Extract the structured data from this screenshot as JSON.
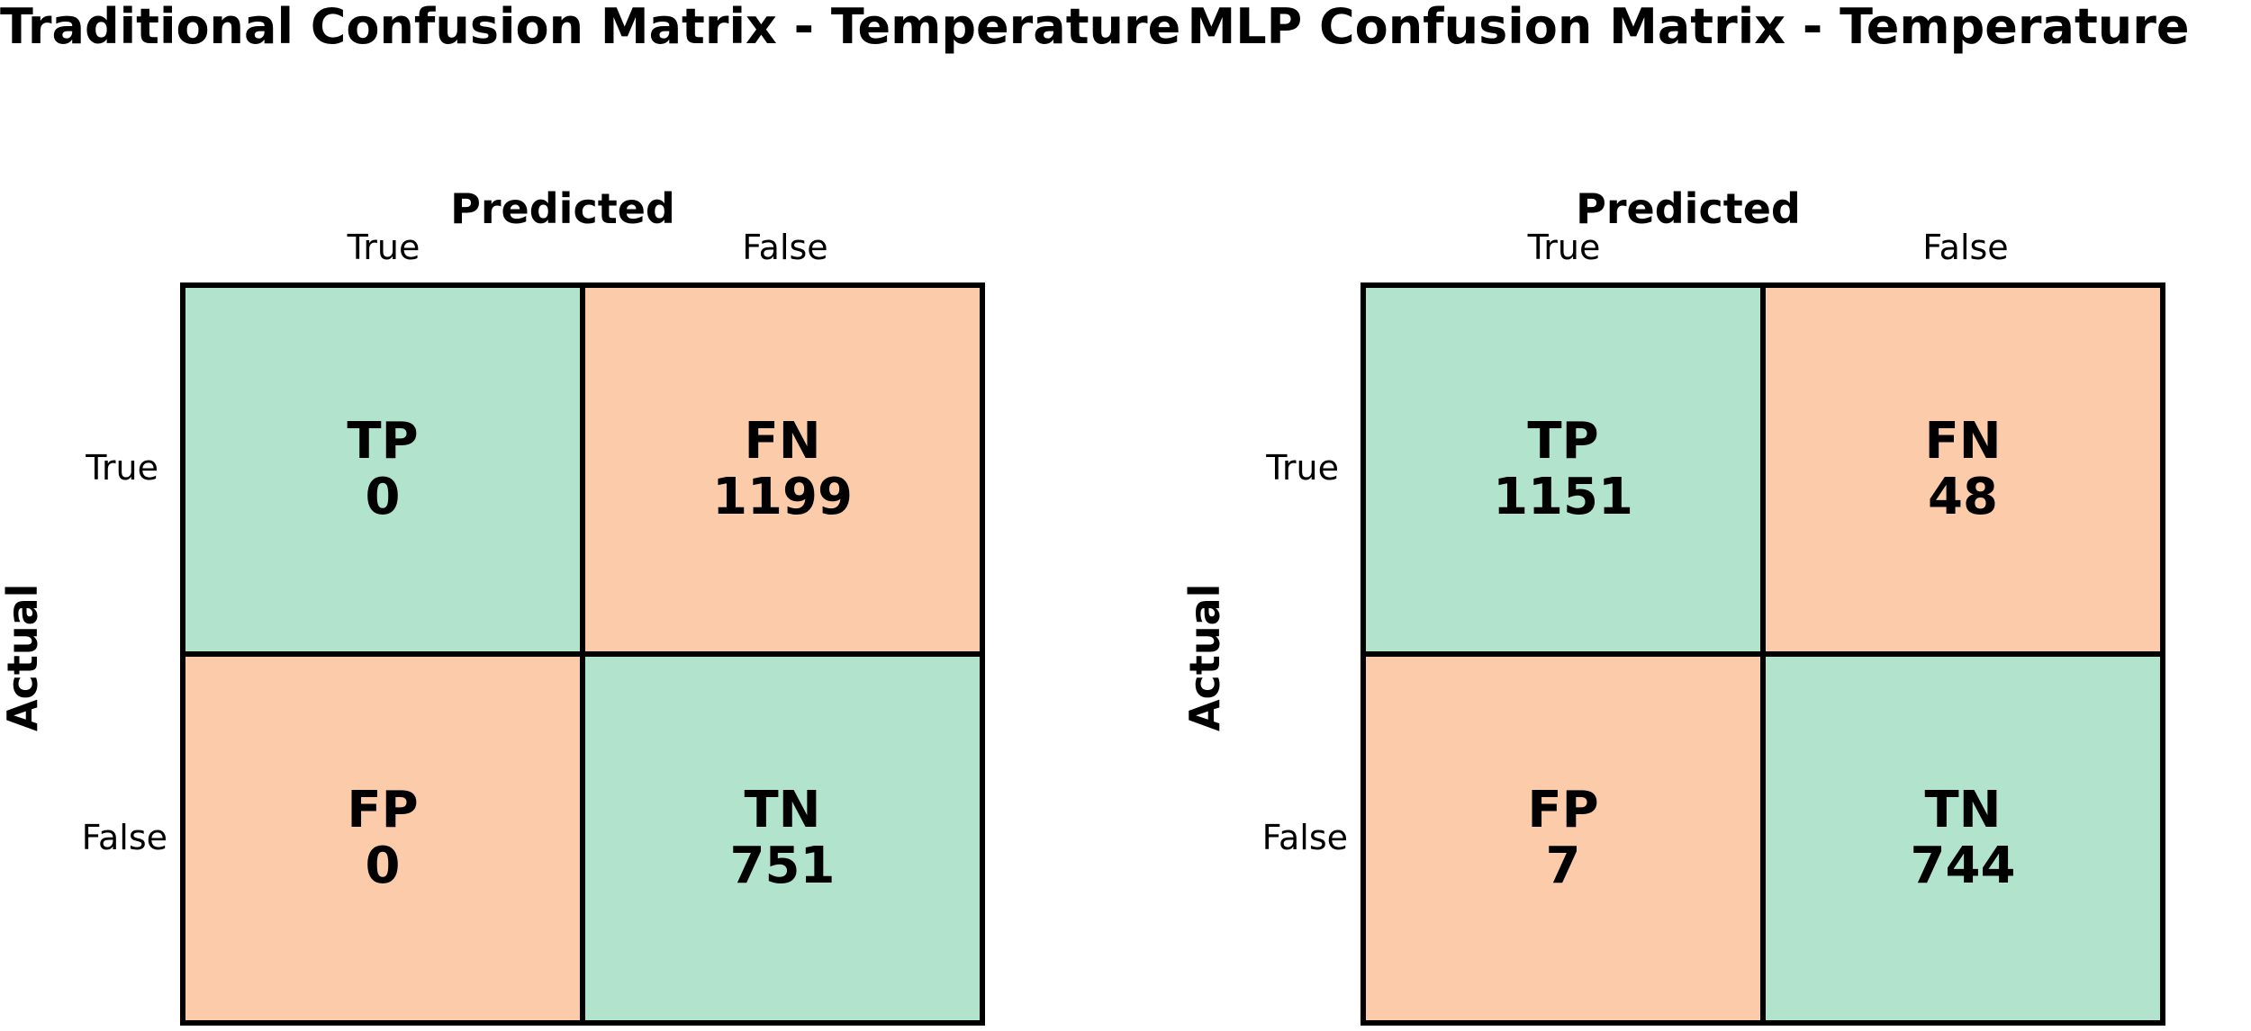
{
  "colors": {
    "correct": "#b2e3cd",
    "incorrect": "#fccba9",
    "border": "#000000"
  },
  "chart_data": [
    {
      "type": "heatmap",
      "title": "Traditional Confusion Matrix - Temperature",
      "xlabel": "Predicted",
      "ylabel": "Actual",
      "x_categories": [
        "True",
        "False"
      ],
      "y_categories": [
        "True",
        "False"
      ],
      "cells": [
        {
          "actual": "True",
          "predicted": "True",
          "label": "TP",
          "value": "0",
          "kind": "correct"
        },
        {
          "actual": "True",
          "predicted": "False",
          "label": "FN",
          "value": "1199",
          "kind": "incorrect"
        },
        {
          "actual": "False",
          "predicted": "True",
          "label": "FP",
          "value": "0",
          "kind": "incorrect"
        },
        {
          "actual": "False",
          "predicted": "False",
          "label": "TN",
          "value": "751",
          "kind": "correct"
        }
      ]
    },
    {
      "type": "heatmap",
      "title": "MLP Confusion Matrix - Temperature",
      "xlabel": "Predicted",
      "ylabel": "Actual",
      "x_categories": [
        "True",
        "False"
      ],
      "y_categories": [
        "True",
        "False"
      ],
      "cells": [
        {
          "actual": "True",
          "predicted": "True",
          "label": "TP",
          "value": "1151",
          "kind": "correct"
        },
        {
          "actual": "True",
          "predicted": "False",
          "label": "FN",
          "value": "48",
          "kind": "incorrect"
        },
        {
          "actual": "False",
          "predicted": "True",
          "label": "FP",
          "value": "7",
          "kind": "incorrect"
        },
        {
          "actual": "False",
          "predicted": "False",
          "label": "TN",
          "value": "744",
          "kind": "correct"
        }
      ]
    }
  ]
}
